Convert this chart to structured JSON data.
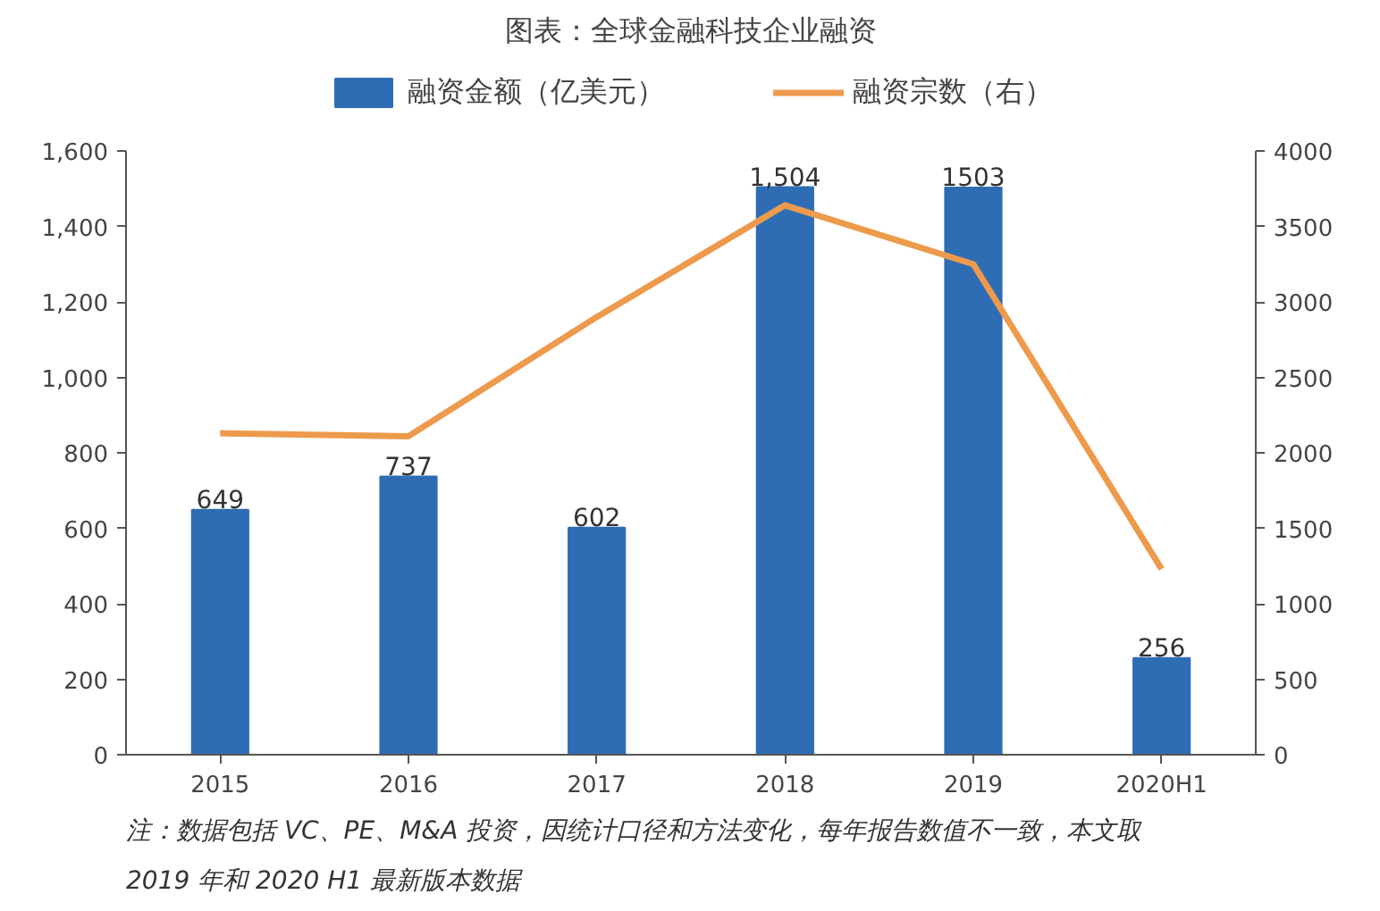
{
  "chart_data": {
    "type": "bar",
    "title": "图表：全球金融科技企业融资",
    "categories": [
      "2015",
      "2016",
      "2017",
      "2018",
      "2019",
      "2020H1"
    ],
    "series": [
      {
        "name": "融资金额（亿美元）",
        "color": "#2e6db4",
        "values": [
          649,
          737,
          602,
          1504,
          1503,
          256
        ],
        "value_labels": [
          "649",
          "737",
          "602",
          "1,504",
          "1503",
          "256"
        ]
      },
      {
        "name": "融资宗数（右）",
        "type": "line",
        "axis": "y2",
        "color": "#ed9a4d",
        "values": [
          2130,
          2110,
          2900,
          3640,
          3250,
          1230
        ]
      }
    ],
    "ylim": [
      0,
      1600
    ],
    "yticks": [
      0,
      200,
      400,
      600,
      800,
      {
        "value": 1000,
        "label": "1,000"
      },
      {
        "value": 1200,
        "label": "1,200"
      },
      {
        "value": 1400,
        "label": "1,400"
      },
      {
        "value": 1600,
        "label": "1,600"
      }
    ],
    "y2lim": [
      0,
      4000
    ],
    "y2ticks": [
      0,
      500,
      1000,
      1500,
      2000,
      2500,
      3000,
      3500,
      4000
    ],
    "grid": false,
    "legend": "top",
    "marker": "none",
    "line_style": "solid",
    "annotations": [
      "注：数据包括 VC、PE、M&A 投资，因统计口径和方法变化，每年报告数值不一致，本文取 2019 年和 2020 H1 最新版本数据"
    ]
  }
}
